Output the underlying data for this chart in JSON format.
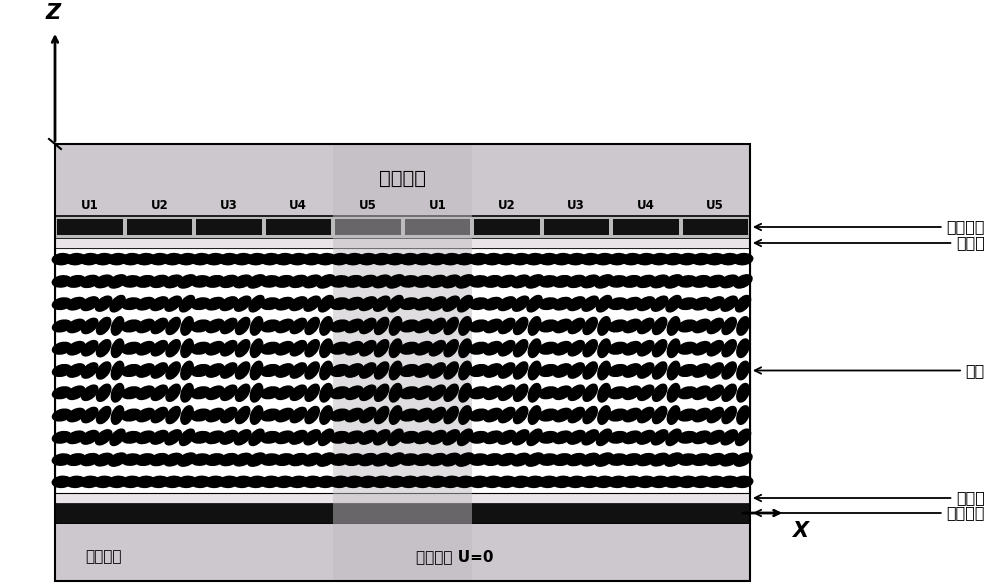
{
  "fig_width": 10.0,
  "fig_height": 5.86,
  "dpi": 100,
  "bg_color": "#ffffff",
  "glass_color": "#cdc8cd",
  "lc_bg_color": "#ffffff",
  "align_color": "#e8e4e8",
  "electrode_black": "#111111",
  "electrode_label_bg": "#cccccc",
  "highlight_color": "#c0bcc0",
  "labels_right": [
    "驱动电极",
    "取向层",
    "液晶",
    "取向层",
    "公共电极"
  ],
  "label_bottom_left": "入射光波",
  "label_bottom_mid": "玻璃基板 U=0",
  "label_top_glass": "玻璃基板",
  "electrode_labels": [
    "U1",
    "U2",
    "U3",
    "U4",
    "U5",
    "U1",
    "U2",
    "U3",
    "U4",
    "U5"
  ],
  "axis_z": "Z",
  "axis_x": "X"
}
